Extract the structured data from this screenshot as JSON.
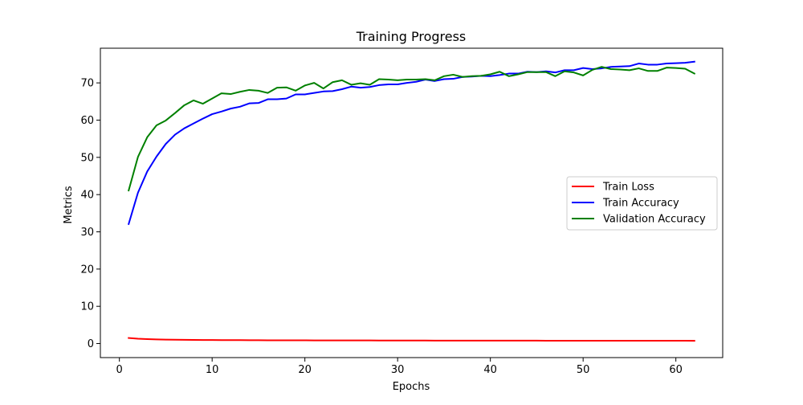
{
  "chart_data": {
    "type": "line",
    "title": "Training Progress",
    "xlabel": "Epochs",
    "ylabel": "Metrics",
    "xlim": [
      -2.05,
      65.05
    ],
    "ylim": [
      -3.77,
      79.31
    ],
    "xticks": [
      0,
      10,
      20,
      30,
      40,
      50,
      60
    ],
    "yticks": [
      0,
      10,
      20,
      30,
      40,
      50,
      60,
      70
    ],
    "grid": false,
    "legend_position": "center-right",
    "x": [
      1,
      2,
      3,
      4,
      5,
      6,
      7,
      8,
      9,
      10,
      11,
      12,
      13,
      14,
      15,
      16,
      17,
      18,
      19,
      20,
      21,
      22,
      23,
      24,
      25,
      26,
      27,
      28,
      29,
      30,
      31,
      32,
      33,
      34,
      35,
      36,
      37,
      38,
      39,
      40,
      41,
      42,
      43,
      44,
      45,
      46,
      47,
      48,
      49,
      50,
      51,
      52,
      53,
      54,
      55,
      56,
      57,
      58,
      59,
      60,
      61,
      62
    ],
    "series": [
      {
        "name": "Train Loss",
        "color": "#ff0000",
        "values": [
          1.5,
          1.3,
          1.2,
          1.12,
          1.07,
          1.03,
          1.0,
          0.98,
          0.96,
          0.94,
          0.93,
          0.92,
          0.91,
          0.9,
          0.89,
          0.88,
          0.88,
          0.87,
          0.86,
          0.86,
          0.85,
          0.85,
          0.84,
          0.84,
          0.83,
          0.83,
          0.83,
          0.82,
          0.82,
          0.82,
          0.81,
          0.81,
          0.81,
          0.8,
          0.8,
          0.8,
          0.8,
          0.79,
          0.79,
          0.79,
          0.79,
          0.78,
          0.78,
          0.78,
          0.78,
          0.77,
          0.77,
          0.77,
          0.77,
          0.77,
          0.76,
          0.76,
          0.76,
          0.76,
          0.76,
          0.75,
          0.75,
          0.75,
          0.75,
          0.75,
          0.75,
          0.74
        ]
      },
      {
        "name": "Train Accuracy",
        "color": "#0000ff",
        "values": [
          32.1,
          40.5,
          46.2,
          50.2,
          53.6,
          56.1,
          57.8,
          59.1,
          60.4,
          61.6,
          62.3,
          63.1,
          63.6,
          64.5,
          64.6,
          65.6,
          65.6,
          65.8,
          66.9,
          66.9,
          67.3,
          67.7,
          67.8,
          68.3,
          69.0,
          68.7,
          68.9,
          69.4,
          69.6,
          69.6,
          70.0,
          70.3,
          70.9,
          70.5,
          71.0,
          71.1,
          71.6,
          71.7,
          71.9,
          71.8,
          72.1,
          72.5,
          72.5,
          73.0,
          72.9,
          73.1,
          72.8,
          73.4,
          73.4,
          74.0,
          73.7,
          73.9,
          74.3,
          74.4,
          74.5,
          75.2,
          74.9,
          74.9,
          75.2,
          75.3,
          75.4,
          75.7
        ]
      },
      {
        "name": "Validation Accuracy",
        "color": "#008000",
        "values": [
          41.1,
          50.1,
          55.4,
          58.6,
          59.9,
          61.9,
          64.0,
          65.3,
          64.4,
          65.8,
          67.2,
          67.0,
          67.6,
          68.1,
          67.9,
          67.3,
          68.7,
          68.8,
          67.9,
          69.3,
          70.0,
          68.5,
          70.2,
          70.7,
          69.5,
          69.9,
          69.5,
          71.0,
          70.9,
          70.7,
          70.9,
          70.9,
          71.0,
          70.7,
          71.8,
          72.2,
          71.6,
          71.8,
          71.9,
          72.3,
          73.0,
          71.8,
          72.3,
          72.9,
          72.9,
          72.9,
          71.8,
          73.1,
          72.8,
          72.0,
          73.5,
          74.3,
          73.7,
          73.6,
          73.4,
          73.9,
          73.2,
          73.2,
          74.1,
          74.0,
          73.8,
          72.5
        ]
      }
    ]
  }
}
